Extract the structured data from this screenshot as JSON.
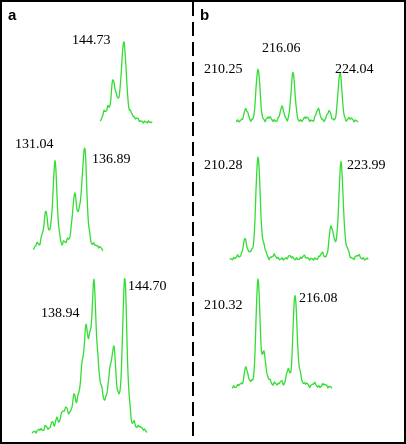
{
  "panels": [
    {
      "letter": "a"
    },
    {
      "letter": "b"
    }
  ],
  "colors": {
    "trace": "#33dd33",
    "frame": "#000000",
    "divider": "#000000"
  },
  "chart_data": [
    {
      "type": "line",
      "panel": "a",
      "peak_labels": [
        "144.73"
      ],
      "peaks": [
        144.73
      ]
    },
    {
      "type": "line",
      "panel": "a",
      "peak_labels": [
        "131.04",
        "136.89"
      ],
      "peaks": [
        131.04,
        136.89
      ]
    },
    {
      "type": "line",
      "panel": "a",
      "peak_labels": [
        "138.94",
        "144.70"
      ],
      "peaks": [
        138.94,
        144.7
      ]
    },
    {
      "type": "line",
      "panel": "b",
      "peak_labels": [
        "210.25",
        "216.06",
        "224.04"
      ],
      "peaks": [
        210.25,
        216.06,
        224.04
      ]
    },
    {
      "type": "line",
      "panel": "b",
      "peak_labels": [
        "210.28",
        "223.99"
      ],
      "peaks": [
        210.28,
        223.99
      ]
    },
    {
      "type": "line",
      "panel": "b",
      "peak_labels": [
        "210.32",
        "216.08"
      ],
      "peaks": [
        210.32,
        216.08
      ]
    }
  ]
}
